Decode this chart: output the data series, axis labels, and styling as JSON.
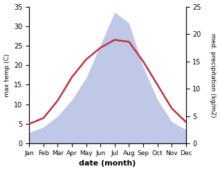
{
  "months": [
    "Jan",
    "Feb",
    "Mar",
    "Apr",
    "May",
    "Jun",
    "Jul",
    "Aug",
    "Sep",
    "Oct",
    "Nov",
    "Dec"
  ],
  "temperature": [
    5.0,
    6.5,
    11.0,
    17.0,
    21.5,
    24.5,
    26.5,
    26.0,
    21.0,
    15.0,
    9.0,
    5.5
  ],
  "precipitation": [
    2.0,
    3.0,
    5.0,
    8.0,
    12.0,
    18.0,
    24.0,
    22.0,
    14.0,
    8.0,
    4.0,
    2.5
  ],
  "temp_color": "#c03040",
  "precip_fill_color": "#c0c8e8",
  "temp_ylim": [
    0,
    35
  ],
  "precip_ylim": [
    0,
    25
  ],
  "xlabel": "date (month)",
  "ylabel_left": "max temp (C)",
  "ylabel_right": "med. precipitation (kg/m2)",
  "figsize": [
    3.18,
    2.47
  ],
  "dpi": 100
}
